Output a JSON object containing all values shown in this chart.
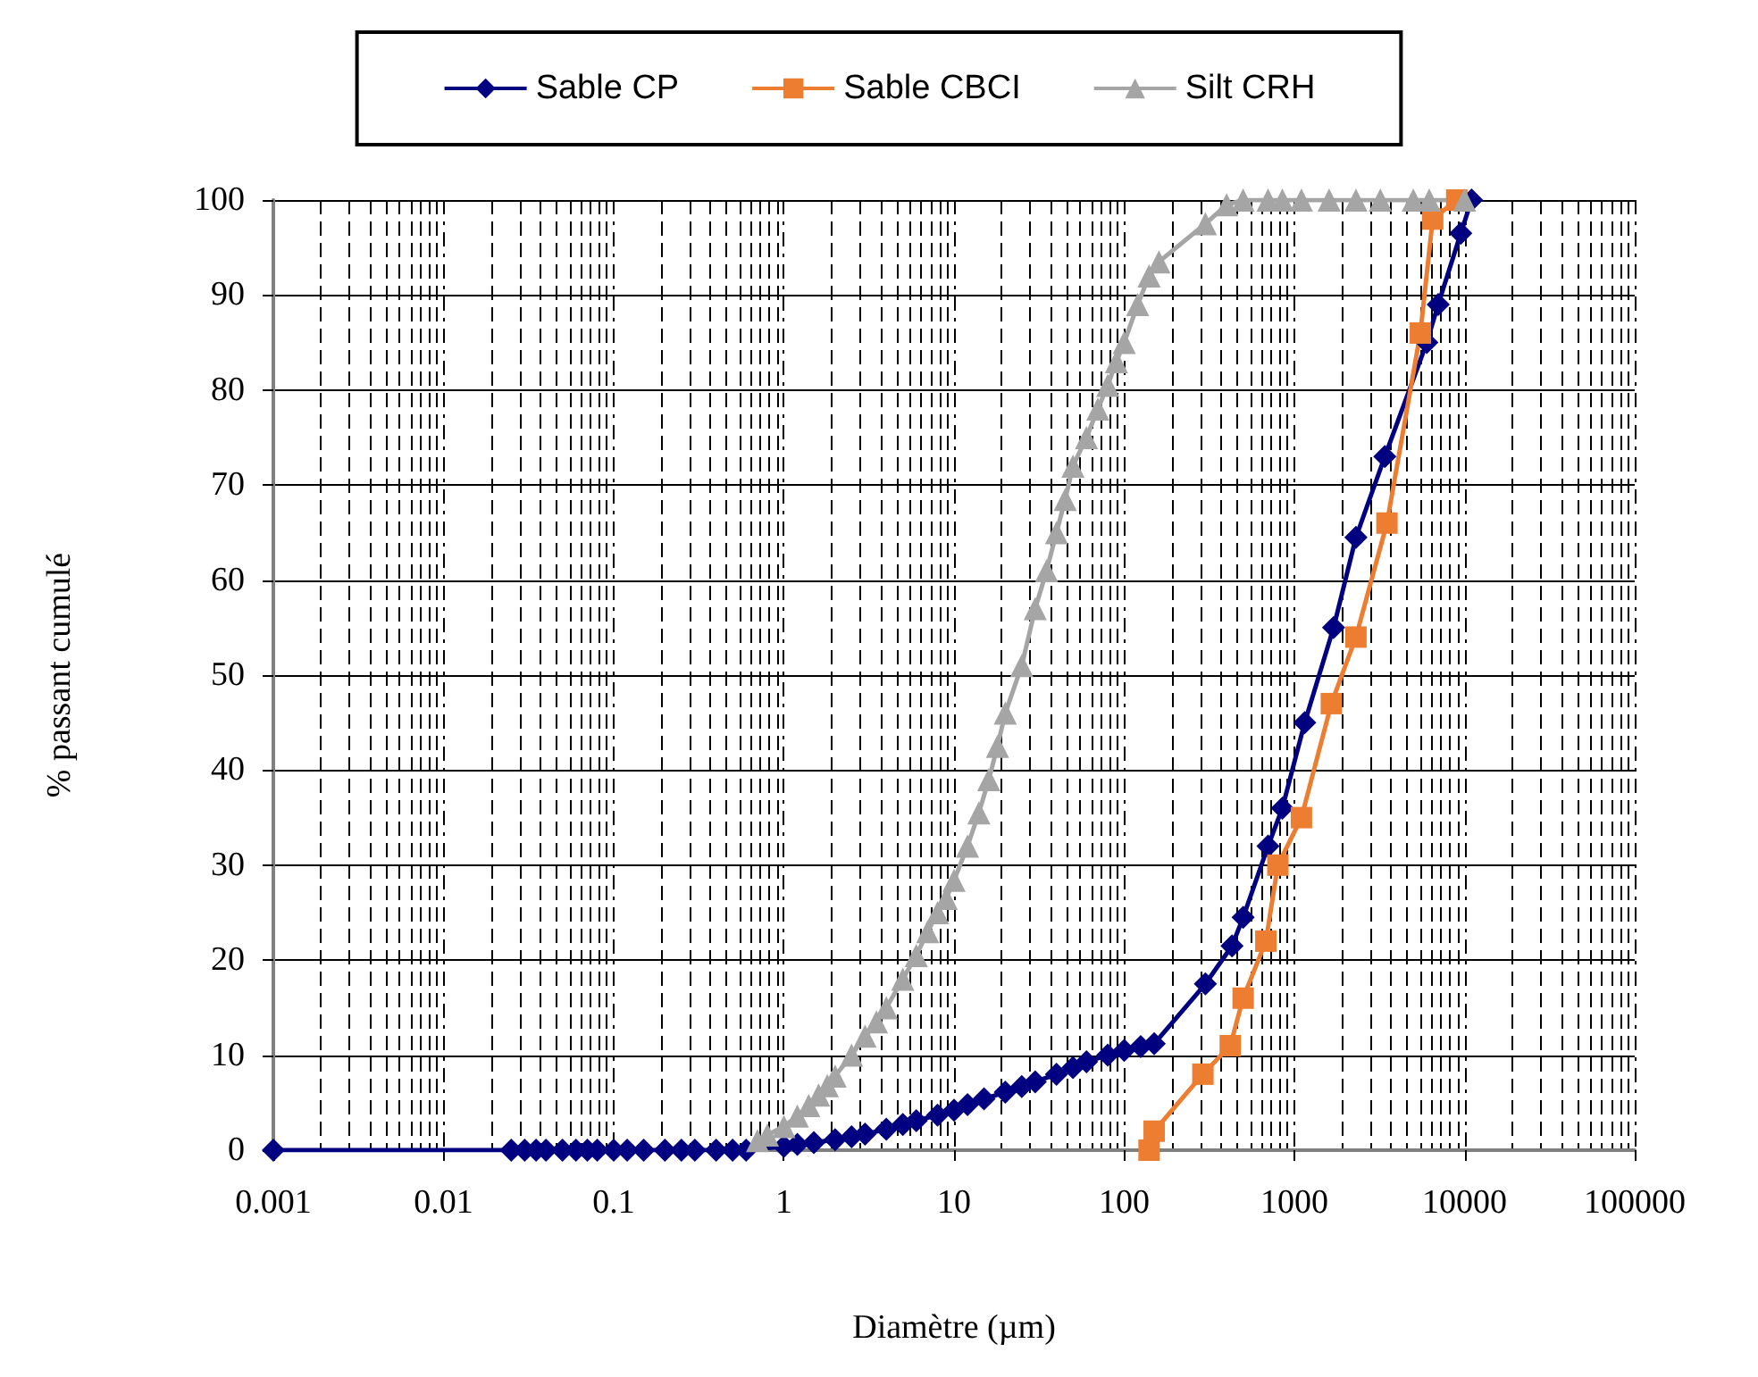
{
  "chart_data": {
    "type": "line",
    "xlabel": "Diamètre (µm)",
    "ylabel": "% passant cumulé",
    "log": "x",
    "grid": true,
    "legend": "top",
    "xlim": [
      0.001,
      100000
    ],
    "xticks": [
      0.001,
      0.01,
      0.1,
      1,
      10,
      100,
      1000,
      10000,
      100000
    ],
    "ylim": [
      0,
      100
    ],
    "yticks": [
      0,
      10,
      20,
      30,
      40,
      50,
      60,
      70,
      80,
      90,
      100
    ],
    "series": [
      {
        "name": "Sable CP",
        "color": "#000080",
        "marker": "diamond",
        "x": [
          0.001,
          0.025,
          0.03,
          0.035,
          0.04,
          0.05,
          0.06,
          0.07,
          0.08,
          0.1,
          0.12,
          0.15,
          0.2,
          0.25,
          0.3,
          0.4,
          0.5,
          0.6,
          1,
          1.2,
          1.5,
          2,
          2.5,
          3,
          4,
          5,
          6,
          8,
          10,
          12,
          15,
          20,
          25,
          30,
          40,
          50,
          60,
          80,
          100,
          125,
          150,
          300,
          430,
          500,
          700,
          850,
          1150,
          1700,
          2300,
          3400,
          6000,
          7000,
          9500,
          11000
        ],
        "values": [
          0,
          0,
          0,
          0,
          0,
          0,
          0,
          0,
          0,
          0,
          0,
          0,
          0,
          0,
          0,
          0,
          0,
          0,
          0.4,
          0.6,
          0.8,
          1.1,
          1.4,
          1.7,
          2.2,
          2.7,
          3.1,
          3.7,
          4.2,
          4.8,
          5.4,
          6.1,
          6.7,
          7.2,
          8,
          8.7,
          9.3,
          10,
          10.5,
          10.9,
          11.2,
          17.5,
          21.5,
          24.5,
          32,
          36,
          45,
          55,
          64.5,
          73,
          85,
          89,
          96.5,
          100
        ]
      },
      {
        "name": "Sable CBCI",
        "color": "#ED7D31",
        "marker": "square",
        "x": [
          140,
          150,
          290,
          420,
          500,
          680,
          800,
          1100,
          1650,
          2300,
          3500,
          5500,
          6500,
          9000
        ],
        "values": [
          0,
          2,
          8,
          11,
          16,
          22,
          30,
          35,
          47,
          54,
          66,
          86,
          98,
          100
        ]
      },
      {
        "name": "Silt CRH",
        "color": "#A5A5A5",
        "marker": "triangle",
        "x": [
          0.7,
          0.8,
          1,
          1.2,
          1.4,
          1.6,
          1.8,
          2,
          2.5,
          3,
          3.5,
          4,
          5,
          6,
          7,
          8,
          9,
          10,
          12,
          14,
          16,
          18,
          20,
          25,
          30,
          35,
          40,
          45,
          50,
          60,
          70,
          80,
          90,
          100,
          120,
          140,
          160,
          300,
          400,
          500,
          700,
          850,
          1100,
          1600,
          2300,
          3200,
          5000,
          6200,
          10000
        ],
        "values": [
          1,
          1.6,
          2.5,
          3.6,
          4.7,
          5.8,
          6.8,
          7.8,
          10,
          12,
          13.5,
          15,
          18,
          20.5,
          23,
          25,
          26.5,
          28.4,
          32,
          35.5,
          39,
          42.5,
          46,
          51,
          57,
          61,
          65,
          68.5,
          72,
          75,
          78,
          80.5,
          83,
          85,
          89,
          92,
          93.5,
          97.5,
          99.5,
          100,
          100,
          100,
          100,
          100,
          100,
          100,
          100,
          100,
          100
        ]
      }
    ]
  }
}
